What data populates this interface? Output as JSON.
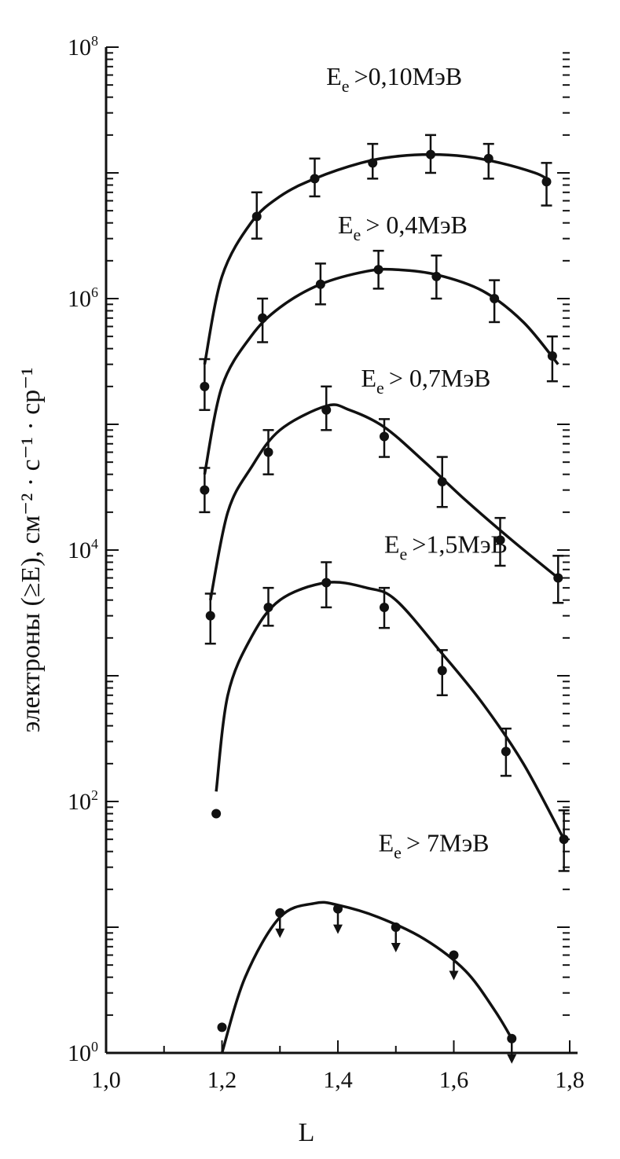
{
  "chart_data": {
    "type": "scatter",
    "title": "",
    "xlabel": "L",
    "ylabel": "электроны (≥E), см⁻² · с⁻¹ · ср⁻¹",
    "xlim": [
      1.0,
      1.8
    ],
    "ylim": [
      1,
      100000000
    ],
    "yscale": "log",
    "x_ticks": [
      "1,0",
      "1,2",
      "1,4",
      "1,6",
      "1,8"
    ],
    "y_ticks": [
      {
        "value": 1,
        "base": "10",
        "exp": "0"
      },
      {
        "value": 100,
        "base": "10",
        "exp": "2"
      },
      {
        "value": 10000,
        "base": "10",
        "exp": "4"
      },
      {
        "value": 1000000,
        "base": "10",
        "exp": "6"
      },
      {
        "value": 100000000,
        "base": "10",
        "exp": "8"
      }
    ],
    "grid": false,
    "series": [
      {
        "name": "Ee >0,10MэB",
        "label_base": "E",
        "label_sub": "e",
        "label_rest": ">0,10MэB",
        "points": [
          {
            "x": 1.17,
            "y": 200000,
            "err": [
              130000,
              330000
            ]
          },
          {
            "x": 1.26,
            "y": 4500000,
            "err": [
              3000000,
              7000000
            ]
          },
          {
            "x": 1.36,
            "y": 9000000,
            "err": [
              6500000,
              13000000
            ]
          },
          {
            "x": 1.46,
            "y": 12000000,
            "err": [
              9000000,
              17000000
            ]
          },
          {
            "x": 1.56,
            "y": 14000000,
            "err": [
              10000000,
              20000000
            ]
          },
          {
            "x": 1.66,
            "y": 13000000,
            "err": [
              9000000,
              17000000
            ]
          },
          {
            "x": 1.76,
            "y": 8500000,
            "err": [
              5500000,
              12000000
            ]
          }
        ],
        "curve": [
          [
            1.17,
            300000
          ],
          [
            1.2,
            1500000
          ],
          [
            1.25,
            4000000
          ],
          [
            1.3,
            6500000
          ],
          [
            1.36,
            9000000
          ],
          [
            1.44,
            12000000
          ],
          [
            1.5,
            13500000
          ],
          [
            1.56,
            14000000
          ],
          [
            1.62,
            13500000
          ],
          [
            1.68,
            12000000
          ],
          [
            1.74,
            10000000
          ],
          [
            1.76,
            9000000
          ]
        ]
      },
      {
        "name": "Ee > 0,4MэB",
        "label_base": "E",
        "label_sub": "e",
        "label_rest": "> 0,4MэB",
        "points": [
          {
            "x": 1.17,
            "y": 30000,
            "err": [
              20000,
              45000
            ]
          },
          {
            "x": 1.27,
            "y": 700000,
            "err": [
              450000,
              1000000
            ]
          },
          {
            "x": 1.37,
            "y": 1300000,
            "err": [
              900000,
              1900000
            ]
          },
          {
            "x": 1.47,
            "y": 1700000,
            "err": [
              1200000,
              2400000
            ]
          },
          {
            "x": 1.57,
            "y": 1500000,
            "err": [
              1000000,
              2200000
            ]
          },
          {
            "x": 1.67,
            "y": 1000000,
            "err": [
              650000,
              1400000
            ]
          },
          {
            "x": 1.77,
            "y": 350000,
            "err": [
              220000,
              500000
            ]
          }
        ],
        "curve": [
          [
            1.17,
            40000
          ],
          [
            1.2,
            200000
          ],
          [
            1.25,
            500000
          ],
          [
            1.3,
            850000
          ],
          [
            1.37,
            1300000
          ],
          [
            1.45,
            1650000
          ],
          [
            1.5,
            1700000
          ],
          [
            1.57,
            1550000
          ],
          [
            1.65,
            1150000
          ],
          [
            1.72,
            650000
          ],
          [
            1.78,
            300000
          ]
        ]
      },
      {
        "name": "Ee > 0,7MэB",
        "label_base": "E",
        "label_sub": "e",
        "label_rest": "> 0,7MэB",
        "points": [
          {
            "x": 1.18,
            "y": 3000,
            "err": [
              1800,
              4500
            ]
          },
          {
            "x": 1.28,
            "y": 60000,
            "err": [
              40000,
              90000
            ]
          },
          {
            "x": 1.38,
            "y": 130000,
            "err": [
              90000,
              200000
            ]
          },
          {
            "x": 1.48,
            "y": 80000,
            "err": [
              55000,
              110000
            ]
          },
          {
            "x": 1.58,
            "y": 35000,
            "err": [
              22000,
              55000
            ]
          },
          {
            "x": 1.68,
            "y": 12000,
            "err": [
              7500,
              18000
            ]
          },
          {
            "x": 1.78,
            "y": 6000,
            "err": [
              3800,
              9000
            ]
          }
        ],
        "curve": [
          [
            1.18,
            4000
          ],
          [
            1.21,
            20000
          ],
          [
            1.25,
            45000
          ],
          [
            1.3,
            90000
          ],
          [
            1.38,
            140000
          ],
          [
            1.42,
            130000
          ],
          [
            1.48,
            95000
          ],
          [
            1.55,
            50000
          ],
          [
            1.62,
            25000
          ],
          [
            1.7,
            12000
          ],
          [
            1.78,
            6000
          ]
        ]
      },
      {
        "name": "Ee >1,5MэB",
        "label_base": "E",
        "label_sub": "e",
        "label_rest": ">1,5MэB",
        "points": [
          {
            "x": 1.19,
            "y": 80,
            "err": null
          },
          {
            "x": 1.28,
            "y": 3500,
            "err": [
              2500,
              5000
            ]
          },
          {
            "x": 1.38,
            "y": 5500,
            "err": [
              3500,
              8000
            ]
          },
          {
            "x": 1.48,
            "y": 3500,
            "err": [
              2400,
              5000
            ]
          },
          {
            "x": 1.58,
            "y": 1100,
            "err": [
              700,
              1600
            ]
          },
          {
            "x": 1.69,
            "y": 250,
            "err": [
              160,
              380
            ]
          },
          {
            "x": 1.79,
            "y": 50,
            "err": [
              28,
              85
            ]
          }
        ],
        "curve": [
          [
            1.19,
            120
          ],
          [
            1.21,
            700
          ],
          [
            1.25,
            2000
          ],
          [
            1.3,
            4000
          ],
          [
            1.38,
            5500
          ],
          [
            1.45,
            5000
          ],
          [
            1.5,
            4000
          ],
          [
            1.58,
            1500
          ],
          [
            1.65,
            600
          ],
          [
            1.72,
            200
          ],
          [
            1.79,
            50
          ]
        ]
      },
      {
        "name": "Ee > 7MэB",
        "label_base": "E",
        "label_sub": "e",
        "label_rest": "> 7MэB",
        "points": [
          {
            "x": 1.2,
            "y": 1.6,
            "upper_limit": false
          },
          {
            "x": 1.3,
            "y": 13,
            "upper_limit": true
          },
          {
            "x": 1.4,
            "y": 14,
            "upper_limit": true
          },
          {
            "x": 1.5,
            "y": 10,
            "upper_limit": true
          },
          {
            "x": 1.6,
            "y": 6,
            "upper_limit": true
          },
          {
            "x": 1.7,
            "y": 1.3,
            "upper_limit": true
          }
        ],
        "curve": [
          [
            1.2,
            1.0
          ],
          [
            1.24,
            4
          ],
          [
            1.3,
            12
          ],
          [
            1.36,
            15.5
          ],
          [
            1.4,
            15
          ],
          [
            1.47,
            12
          ],
          [
            1.55,
            8
          ],
          [
            1.62,
            4.5
          ],
          [
            1.67,
            2.2
          ],
          [
            1.7,
            1.3
          ]
        ]
      }
    ]
  }
}
